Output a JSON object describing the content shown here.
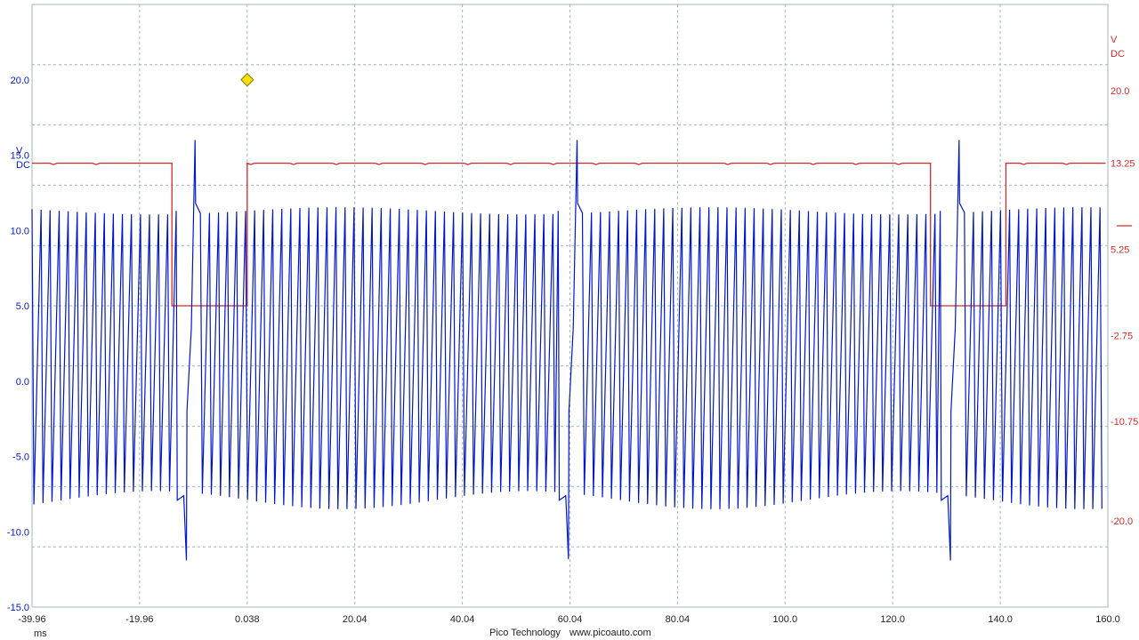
{
  "colors": {
    "background": "#ffffff",
    "grid": "#9fb7c2",
    "channel_a": "#0018c8",
    "channel_b": "#d42a2a",
    "trigger_marker": "#f4e100",
    "trigger_marker_outline": "#8a7a00",
    "axis_text": "#222222"
  },
  "footer": {
    "brand": "Pico Technology",
    "url": "www.picoauto.com"
  },
  "chart_data": {
    "type": "line",
    "x_unit": "ms",
    "xlim": [
      -39.96,
      160.0
    ],
    "x_ticks": [
      "-39.96",
      "-19.96",
      "0.038",
      "20.04",
      "40.04",
      "60.04",
      "80.04",
      "100.0",
      "120.0",
      "140.0",
      "160.0"
    ],
    "grid": true,
    "channel_a": {
      "unit": "V",
      "coupling": "DC",
      "side": "left",
      "ylim": [
        -15.0,
        25.0
      ],
      "y_ticks": [
        "20.0",
        "15.0",
        "10.0",
        "5.0",
        "0.0",
        "-5.0",
        "-10.0",
        "-15.0"
      ],
      "y_tick_values": [
        20,
        15,
        10,
        5,
        0,
        -5,
        -10,
        -15
      ],
      "waveform": {
        "shape": "oscillation",
        "cycle_period_ms": 1.68,
        "high_v": 11.3,
        "low_v": -7.9,
        "events": [
          {
            "time_ms": -10.96,
            "min_v": -11.9,
            "peak_v": 16.0
          },
          {
            "time_ms": 60.04,
            "min_v": -11.8,
            "peak_v": 16.0
          },
          {
            "time_ms": 131.04,
            "min_v": -11.9,
            "peak_v": 16.0
          }
        ]
      }
    },
    "channel_b": {
      "unit": "V",
      "coupling": "DC",
      "side": "right",
      "ylim": [
        -28.0,
        28.0
      ],
      "y_ticks": [
        "20.0",
        "13.25",
        "5.25",
        "-2.75",
        "-10.75",
        "-20.0"
      ],
      "y_tick_values": [
        20.0,
        13.25,
        5.25,
        -2.75,
        -10.75,
        -20.0
      ],
      "baseline_v": 13.25,
      "low_v": 0.0,
      "low_pulses_ms": [
        [
          -13.96,
          0.038
        ],
        [
          127.04,
          141.04
        ]
      ]
    },
    "trigger": {
      "time_ms": 0.038,
      "level_v": 20.0,
      "channel": "A"
    }
  }
}
